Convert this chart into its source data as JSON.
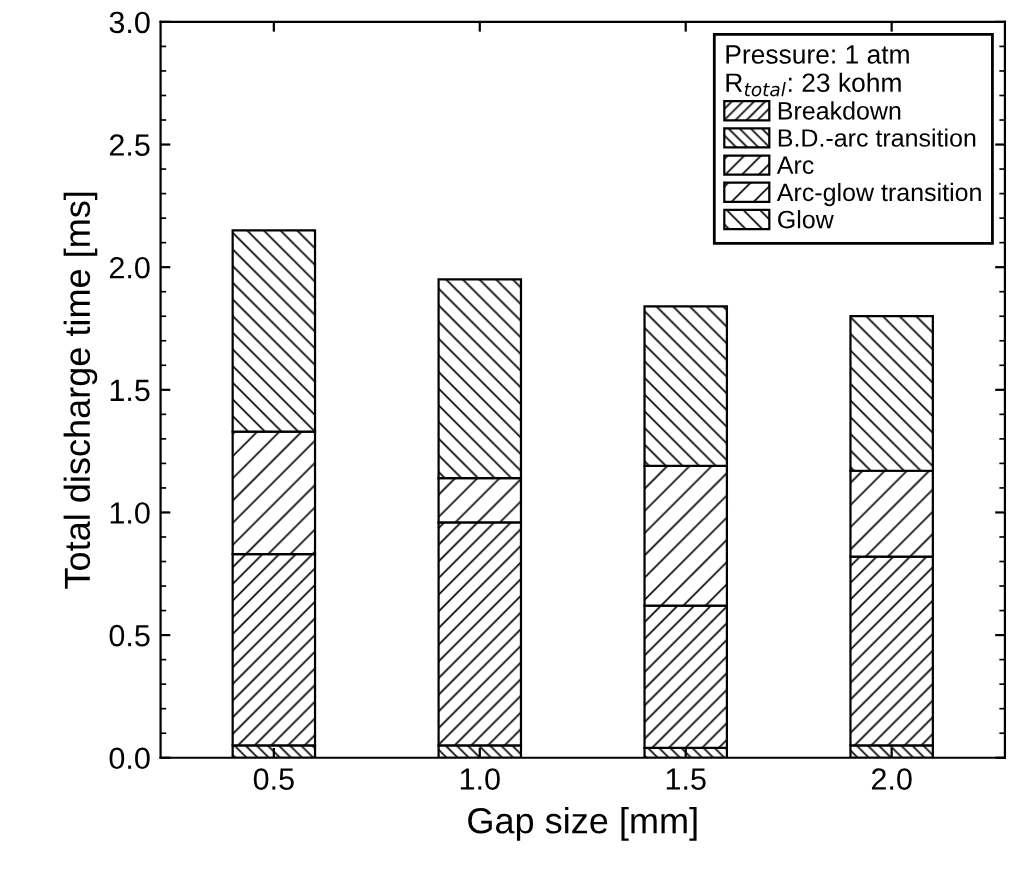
{
  "chart_data": {
    "type": "bar",
    "stacked": true,
    "xlabel": "Gap size [mm]",
    "ylabel": "Total discharge time [ms]",
    "legend_title": "Pressure: 1 atm\nR$_{total}$: 23 kohm",
    "legend": "top right",
    "categories": [
      "0.5",
      "1.0",
      "1.5",
      "2.0"
    ],
    "series": [
      {
        "name": "Breakdown",
        "color": "#000000",
        "values": [
          null,
          null,
          null,
          null
        ]
      },
      {
        "name": "B.D.-arc transition",
        "color": "#000000",
        "values": [
          0.05,
          0.05,
          0.04,
          0.05
        ]
      },
      {
        "name": "Arc",
        "color": "#000000",
        "values": [
          0.78,
          0.91,
          0.58,
          0.77
        ]
      },
      {
        "name": "Arc-glow transition",
        "color": "#000000",
        "values": [
          0.5,
          0.18,
          0.57,
          0.35
        ]
      },
      {
        "name": "Glow",
        "color": "#000000",
        "values": [
          0.82,
          0.81,
          0.65,
          0.63
        ]
      }
    ],
    "ylim": [
      0,
      3.0
    ],
    "yticks": [
      {
        "value": 0,
        "label": "0.0"
      },
      0.5,
      {
        "value": 1,
        "label": "1.0"
      },
      1.5,
      {
        "value": 2,
        "label": "2.0"
      },
      2.5,
      {
        "value": 3,
        "label": "3.0"
      }
    ]
  }
}
